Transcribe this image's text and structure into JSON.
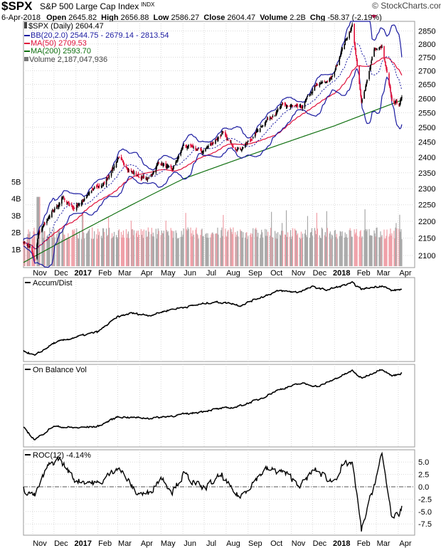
{
  "header": {
    "symbol": "$SPX",
    "name": "S&P 500 Large Cap Index",
    "exchange": "INDX",
    "brand": "StockCharts.com",
    "date": "6-Apr-2018",
    "open_label": "Open",
    "open": "2645.82",
    "high_label": "High",
    "high": "2656.88",
    "low_label": "Low",
    "low": "2586.27",
    "close_label": "Close",
    "close": "2604.47",
    "volume_label": "Volume",
    "volume": "2.2B",
    "chg_label": "Chg",
    "chg": "-58.37 (-2.19%)"
  },
  "colors": {
    "bb": "#1a1aa0",
    "ma50": "#e0103a",
    "ma200": "#107010",
    "up": "#000000",
    "down": "#e0103a",
    "vol_up": "#a8a8a8",
    "vol_down": "#f0a0a8"
  },
  "legend": {
    "price": "$SPX (Daily) 2604.47",
    "bb": "BB(20,2.0) 2544.75 - 2679.14 - 2813.54",
    "ma50": "MA(50) 2709.53",
    "ma200": "MA(200) 2593.70",
    "volume": "Volume 2,187,047,936"
  },
  "chart_data": [
    {
      "type": "candlestick",
      "title": "$SPX (Daily)",
      "scale": "log",
      "ylim": [
        2065,
        2900
      ],
      "y_ticks": [
        "2850",
        "2800",
        "2750",
        "2700",
        "2650",
        "2600",
        "2550",
        "2500",
        "2450",
        "2400",
        "2350",
        "2300",
        "2250",
        "2200",
        "2150",
        "2100"
      ],
      "volume_ticks": [
        "5B",
        "4B",
        "3B",
        "2B",
        "1B"
      ],
      "x_labels": [
        {
          "date": "2016-11-01",
          "label": "Nov"
        },
        {
          "date": "2016-12-01",
          "label": "Dec"
        },
        {
          "date": "2017-01-01",
          "label": "2017",
          "bold": true
        },
        {
          "date": "2017-02-01",
          "label": "Feb"
        },
        {
          "date": "2017-03-01",
          "label": "Mar"
        },
        {
          "date": "2017-04-01",
          "label": "Apr"
        },
        {
          "date": "2017-05-01",
          "label": "May"
        },
        {
          "date": "2017-06-01",
          "label": "Jun"
        },
        {
          "date": "2017-07-01",
          "label": "Jul"
        },
        {
          "date": "2017-08-01",
          "label": "Aug"
        },
        {
          "date": "2017-09-01",
          "label": "Sep"
        },
        {
          "date": "2017-10-01",
          "label": "Oct"
        },
        {
          "date": "2017-11-01",
          "label": "Nov"
        },
        {
          "date": "2017-12-01",
          "label": "Dec"
        },
        {
          "date": "2018-01-01",
          "label": "2018",
          "bold": true
        },
        {
          "date": "2018-02-01",
          "label": "Feb"
        },
        {
          "date": "2018-03-01",
          "label": "Mar"
        },
        {
          "date": "2018-04-01",
          "label": "Apr"
        }
      ],
      "close_keypoints": [
        [
          "2016-10-19",
          2140
        ],
        [
          "2016-10-28",
          2125
        ],
        [
          "2016-11-04",
          2085
        ],
        [
          "2016-11-09",
          2163
        ],
        [
          "2016-11-25",
          2213
        ],
        [
          "2016-12-13",
          2271
        ],
        [
          "2016-12-30",
          2239
        ],
        [
          "2017-01-26",
          2297
        ],
        [
          "2017-02-10",
          2316
        ],
        [
          "2017-03-01",
          2395
        ],
        [
          "2017-03-27",
          2342
        ],
        [
          "2017-04-13",
          2329
        ],
        [
          "2017-04-28",
          2385
        ],
        [
          "2017-05-17",
          2357
        ],
        [
          "2017-06-02",
          2439
        ],
        [
          "2017-06-29",
          2419
        ],
        [
          "2017-07-26",
          2478
        ],
        [
          "2017-08-10",
          2438
        ],
        [
          "2017-08-21",
          2428
        ],
        [
          "2017-09-05",
          2457
        ],
        [
          "2017-09-20",
          2508
        ],
        [
          "2017-10-20",
          2575
        ],
        [
          "2017-11-15",
          2565
        ],
        [
          "2017-12-04",
          2640
        ],
        [
          "2017-12-29",
          2674
        ],
        [
          "2018-01-12",
          2786
        ],
        [
          "2018-01-26",
          2872
        ],
        [
          "2018-02-08",
          2581
        ],
        [
          "2018-02-26",
          2780
        ],
        [
          "2018-03-09",
          2786
        ],
        [
          "2018-03-23",
          2588
        ],
        [
          "2018-04-02",
          2582
        ],
        [
          "2018-04-06",
          2604.47
        ]
      ],
      "ma200_keypoints": [
        [
          "2016-10-19",
          2080
        ],
        [
          "2017-06-01",
          2330
        ],
        [
          "2018-01-01",
          2505
        ],
        [
          "2018-04-06",
          2593.7
        ]
      ]
    },
    {
      "type": "line",
      "title": "Accum/Dist",
      "units": "relative 0-100",
      "keypoints": [
        [
          "2016-10-19",
          10
        ],
        [
          "2016-11-04",
          3
        ],
        [
          "2016-12-01",
          20
        ],
        [
          "2017-01-01",
          28
        ],
        [
          "2017-02-01",
          35
        ],
        [
          "2017-03-01",
          55
        ],
        [
          "2017-03-20",
          60
        ],
        [
          "2017-04-15",
          57
        ],
        [
          "2017-05-15",
          65
        ],
        [
          "2017-06-15",
          70
        ],
        [
          "2017-07-15",
          75
        ],
        [
          "2017-08-10",
          73
        ],
        [
          "2017-08-20",
          70
        ],
        [
          "2017-09-15",
          80
        ],
        [
          "2017-10-15",
          90
        ],
        [
          "2017-11-10",
          88
        ],
        [
          "2017-12-01",
          95
        ],
        [
          "2017-12-20",
          91
        ],
        [
          "2018-01-26",
          100
        ],
        [
          "2018-02-08",
          92
        ],
        [
          "2018-03-09",
          97
        ],
        [
          "2018-03-23",
          90
        ],
        [
          "2018-04-06",
          92
        ]
      ]
    },
    {
      "type": "line",
      "title": "On Balance Vol",
      "units": "relative 0-100",
      "keypoints": [
        [
          "2016-10-19",
          20
        ],
        [
          "2016-11-04",
          4
        ],
        [
          "2016-11-30",
          22
        ],
        [
          "2017-01-01",
          20
        ],
        [
          "2017-02-01",
          22
        ],
        [
          "2017-03-01",
          35
        ],
        [
          "2017-04-15",
          33
        ],
        [
          "2017-05-15",
          36
        ],
        [
          "2017-06-15",
          40
        ],
        [
          "2017-07-15",
          45
        ],
        [
          "2017-08-15",
          48
        ],
        [
          "2017-09-15",
          58
        ],
        [
          "2017-10-15",
          72
        ],
        [
          "2017-11-15",
          80
        ],
        [
          "2017-12-10",
          76
        ],
        [
          "2018-01-26",
          97
        ],
        [
          "2018-02-08",
          87
        ],
        [
          "2018-03-09",
          100
        ],
        [
          "2018-03-23",
          90
        ],
        [
          "2018-04-06",
          94
        ]
      ]
    },
    {
      "type": "line",
      "title": "ROC(12) -4.14%",
      "legend": "ROC(12) -4.14%",
      "y_ticks": [
        "5.0",
        "2.5",
        "0.0",
        "-2.5",
        "-5.0",
        "-7.5"
      ],
      "keypoints": [
        [
          "2016-10-19",
          -0.5
        ],
        [
          "2016-11-04",
          -1.8
        ],
        [
          "2016-11-22",
          4
        ],
        [
          "2016-12-08",
          5.7
        ],
        [
          "2016-12-30",
          1.5
        ],
        [
          "2017-01-20",
          1
        ],
        [
          "2017-02-03",
          0.5
        ],
        [
          "2017-03-01",
          4.2
        ],
        [
          "2017-03-27",
          -1.2
        ],
        [
          "2017-04-13",
          -1.5
        ],
        [
          "2017-05-01",
          2
        ],
        [
          "2017-05-17",
          -0.8
        ],
        [
          "2017-06-02",
          2.5
        ],
        [
          "2017-06-29",
          -0.5
        ],
        [
          "2017-07-26",
          2.3
        ],
        [
          "2017-08-10",
          -1
        ],
        [
          "2017-08-21",
          -2
        ],
        [
          "2017-09-05",
          0.5
        ],
        [
          "2017-09-25",
          3.5
        ],
        [
          "2017-10-20",
          3
        ],
        [
          "2017-11-15",
          0.3
        ],
        [
          "2017-12-04",
          3.5
        ],
        [
          "2017-12-29",
          1
        ],
        [
          "2018-01-12",
          4
        ],
        [
          "2018-01-26",
          5
        ],
        [
          "2018-02-08",
          -8.8
        ],
        [
          "2018-02-26",
          0.5
        ],
        [
          "2018-03-09",
          6.5
        ],
        [
          "2018-03-23",
          -6
        ],
        [
          "2018-04-02",
          -6.2
        ],
        [
          "2018-04-06",
          -4.14
        ]
      ]
    }
  ]
}
